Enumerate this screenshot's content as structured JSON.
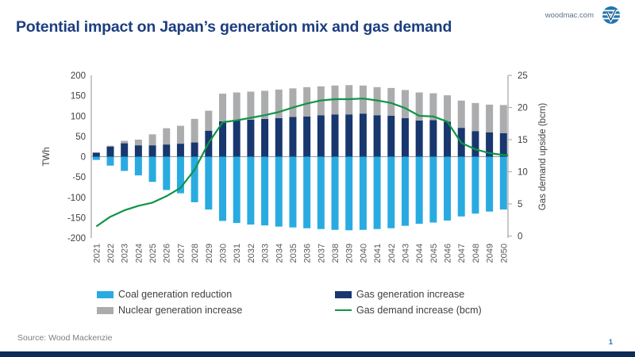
{
  "header": {
    "title": "Potential impact on Japan’s generation mix and gas demand",
    "site": "woodmac.com"
  },
  "footer": {
    "source": "Source: Wood Mackenzie",
    "page_number": "1"
  },
  "colors": {
    "title_navy": "#1d3e80",
    "coal_blue": "#29abe2",
    "gas_navy": "#17376e",
    "nuclear_gray": "#abacae",
    "demand_green": "#0f9447",
    "footer_bar_navy": "#0d2b57",
    "page_number_blue": "#2e75b6",
    "logo_blue": "#1f74b0"
  },
  "legend": {
    "items": [
      {
        "label": "Coal generation reduction",
        "color": "#29abe2",
        "swatch": "rect"
      },
      {
        "label": "Gas generation increase",
        "color": "#17376e",
        "swatch": "rect"
      },
      {
        "label": "Nuclear generation increase",
        "color": "#abacae",
        "swatch": "rect"
      },
      {
        "label": "Gas demand increase (bcm)",
        "color": "#0f9447",
        "swatch": "line"
      }
    ]
  },
  "chart_data": {
    "type": "bar",
    "subtype": "stacked-bar-with-line",
    "categories": [
      2021,
      2022,
      2023,
      2024,
      2025,
      2026,
      2027,
      2028,
      2029,
      2030,
      2031,
      2032,
      2033,
      2034,
      2035,
      2036,
      2037,
      2038,
      2039,
      2040,
      2041,
      2042,
      2043,
      2044,
      2045,
      2046,
      2047,
      2048,
      2049,
      2050
    ],
    "series": [
      {
        "name": "Coal generation reduction",
        "type": "bar",
        "axis": "left",
        "color": "#29abe2",
        "values": [
          -8,
          -22,
          -35,
          -46,
          -62,
          -82,
          -90,
          -112,
          -130,
          -158,
          -163,
          -167,
          -169,
          -172,
          -174,
          -176,
          -178,
          -180,
          -181,
          -180,
          -178,
          -176,
          -170,
          -165,
          -162,
          -157,
          -147,
          -140,
          -135,
          -130
        ]
      },
      {
        "name": "Gas generation increase",
        "type": "bar",
        "axis": "left",
        "color": "#17376e",
        "values": [
          10,
          25,
          33,
          28,
          28,
          30,
          32,
          35,
          64,
          87,
          90,
          91,
          93,
          95,
          98,
          99,
          102,
          104,
          104,
          106,
          102,
          101,
          95,
          89,
          90,
          86,
          71,
          63,
          60,
          58
        ]
      },
      {
        "name": "Nuclear generation increase",
        "type": "bar",
        "axis": "left",
        "color": "#abacae",
        "values": [
          0,
          2,
          6,
          14,
          27,
          40,
          44,
          58,
          49,
          68,
          68,
          69,
          69,
          70,
          70,
          72,
          71,
          71,
          72,
          69,
          69,
          68,
          69,
          69,
          66,
          65,
          67,
          69,
          68,
          69
        ]
      },
      {
        "name": "Gas demand increase (bcm)",
        "type": "line",
        "axis": "right",
        "color": "#0f9447",
        "values": [
          1.5,
          3.0,
          4.0,
          4.7,
          5.2,
          6.2,
          7.5,
          10.3,
          14.5,
          17.7,
          18.0,
          18.4,
          18.8,
          19.3,
          20.0,
          20.6,
          21.1,
          21.3,
          21.3,
          21.4,
          21.1,
          20.7,
          19.9,
          18.7,
          18.6,
          17.8,
          14.5,
          13.5,
          12.9,
          12.6
        ]
      }
    ],
    "left_axis": {
      "label": "TWh",
      "min": -200,
      "max": 200,
      "step": 50
    },
    "right_axis": {
      "label": "Gas demand upside (bcm)",
      "min": 0,
      "max": 25,
      "step": 5
    },
    "grid": "zero-line-only",
    "legend_position": "bottom"
  }
}
